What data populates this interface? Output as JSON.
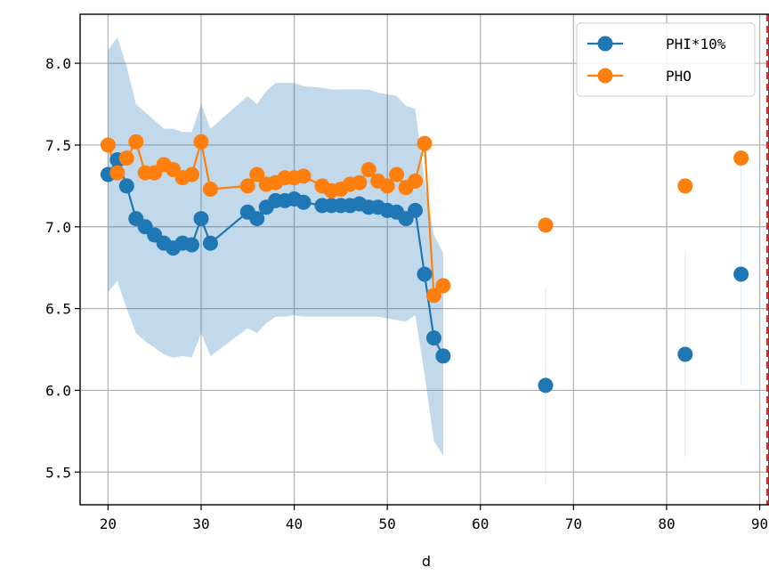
{
  "chart_data": {
    "type": "line",
    "title": "",
    "xlabel": "d",
    "ylabel": "",
    "xlim": [
      17,
      91
    ],
    "ylim": [
      5.3,
      8.3
    ],
    "xticks": [
      20,
      30,
      40,
      50,
      60,
      70,
      80,
      90
    ],
    "xtick_labels": [
      "20",
      "30",
      "40",
      "50",
      "60",
      "70",
      "80",
      "90"
    ],
    "yticks": [
      5.5,
      6.0,
      6.5,
      7.0,
      7.5,
      8.0
    ],
    "ytick_labels": [
      "5.5",
      "6.0",
      "6.5",
      "7.0",
      "7.5",
      "8.0"
    ],
    "grid": true,
    "legend_position": "top-right",
    "reference_line": {
      "x": 90.8,
      "style": "dashed",
      "color": "#d62728"
    },
    "series": [
      {
        "name": "PHI*10%",
        "color": "#1f77b4",
        "x": [
          20,
          21,
          22,
          23,
          24,
          25,
          26,
          27,
          28,
          29,
          30,
          31,
          35,
          36,
          37,
          38,
          39,
          40,
          41,
          43,
          44,
          45,
          46,
          47,
          48,
          49,
          50,
          51,
          52,
          53,
          54,
          55,
          56,
          67,
          82,
          88
        ],
        "y": [
          7.32,
          7.41,
          7.25,
          7.05,
          7.0,
          6.95,
          6.9,
          6.87,
          6.9,
          6.89,
          7.05,
          6.9,
          7.09,
          7.05,
          7.12,
          7.16,
          7.16,
          7.17,
          7.15,
          7.13,
          7.13,
          7.13,
          7.13,
          7.14,
          7.12,
          7.12,
          7.1,
          7.09,
          7.05,
          7.1,
          6.71,
          6.32,
          6.21,
          6.03,
          6.22,
          6.71
        ]
      },
      {
        "name": "PHO",
        "color": "#ff7f0e",
        "x": [
          20,
          21,
          22,
          23,
          24,
          25,
          26,
          27,
          28,
          29,
          30,
          31,
          35,
          36,
          37,
          38,
          39,
          40,
          41,
          43,
          44,
          45,
          46,
          47,
          48,
          49,
          50,
          51,
          52,
          53,
          54,
          55,
          56,
          67,
          82,
          88
        ],
        "y": [
          7.5,
          7.33,
          7.42,
          7.52,
          7.33,
          7.33,
          7.38,
          7.35,
          7.3,
          7.32,
          7.52,
          7.23,
          7.25,
          7.32,
          7.26,
          7.27,
          7.3,
          7.3,
          7.31,
          7.25,
          7.22,
          7.23,
          7.26,
          7.27,
          7.35,
          7.28,
          7.25,
          7.32,
          7.24,
          7.28,
          7.51,
          6.58,
          6.64,
          7.01,
          7.25,
          7.42
        ]
      }
    ],
    "confidence_band": {
      "series": "PHI*10%",
      "color": "#1f77b4",
      "x": [
        20,
        21,
        22,
        23,
        24,
        25,
        26,
        27,
        28,
        29,
        30,
        31,
        35,
        36,
        37,
        38,
        39,
        40,
        41,
        43,
        44,
        45,
        46,
        47,
        48,
        49,
        50,
        51,
        52,
        53,
        54,
        55,
        56
      ],
      "upper": [
        8.08,
        8.16,
        7.98,
        7.75,
        7.7,
        7.65,
        7.6,
        7.6,
        7.58,
        7.58,
        7.75,
        7.6,
        7.8,
        7.75,
        7.83,
        7.88,
        7.88,
        7.88,
        7.86,
        7.85,
        7.84,
        7.84,
        7.84,
        7.84,
        7.84,
        7.82,
        7.81,
        7.8,
        7.74,
        7.72,
        7.28,
        6.95,
        6.84
      ],
      "lower": [
        6.6,
        6.67,
        6.5,
        6.35,
        6.3,
        6.26,
        6.22,
        6.2,
        6.21,
        6.2,
        6.35,
        6.21,
        6.38,
        6.35,
        6.41,
        6.45,
        6.45,
        6.46,
        6.45,
        6.45,
        6.45,
        6.45,
        6.45,
        6.45,
        6.45,
        6.45,
        6.44,
        6.43,
        6.42,
        6.46,
        6.1,
        5.69,
        5.6
      ]
    },
    "isolated_band_slivers": [
      {
        "x": 67,
        "lower": 5.42,
        "upper": 6.63
      },
      {
        "x": 82,
        "lower": 5.59,
        "upper": 6.85
      },
      {
        "x": 88,
        "lower": 6.03,
        "upper": 7.38
      }
    ]
  }
}
